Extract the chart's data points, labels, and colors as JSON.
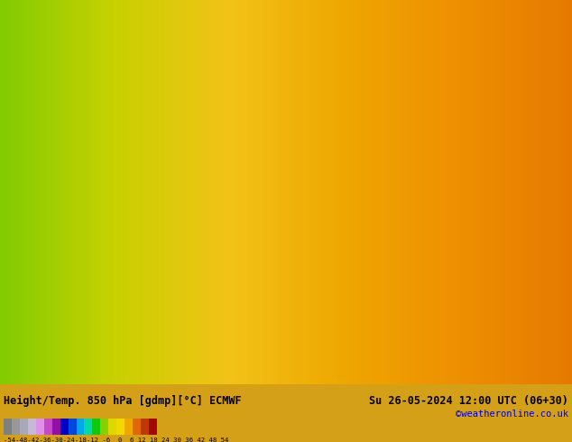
{
  "title_left": "Height/Temp. 850 hPa [gdmp][°C] ECMWF",
  "title_right": "Su 26-05-2024 12:00 UTC (06+30)",
  "credit": "©weatheronline.co.uk",
  "colorbar_values": [
    -54,
    -48,
    -42,
    -36,
    -30,
    -24,
    -18,
    -12,
    -6,
    0,
    6,
    12,
    18,
    24,
    30,
    36,
    42,
    48,
    54
  ],
  "colorbar_label": "-54-48-42-36-30-24-18-12 -6  0  6 12 18 24 30 36 42 48 54",
  "bg_color": "#f5c518",
  "bottom_bg": "#d4a017",
  "map_colors": {
    "yellow_green": "#c8d400",
    "yellow": "#f5c518",
    "orange": "#f0a000",
    "dark_orange": "#e07800"
  },
  "colorbar_colors": [
    "#808080",
    "#909090",
    "#a0a0b0",
    "#c0b0d0",
    "#e080e0",
    "#c040c0",
    "#8000a0",
    "#0000c0",
    "#0040e0",
    "#00a0e0",
    "#00d0a0",
    "#00c000",
    "#80c800",
    "#d4d400",
    "#f0d000",
    "#f0a000",
    "#e06000",
    "#c03000",
    "#a00000"
  ],
  "figsize": [
    6.34,
    4.9
  ],
  "dpi": 100
}
